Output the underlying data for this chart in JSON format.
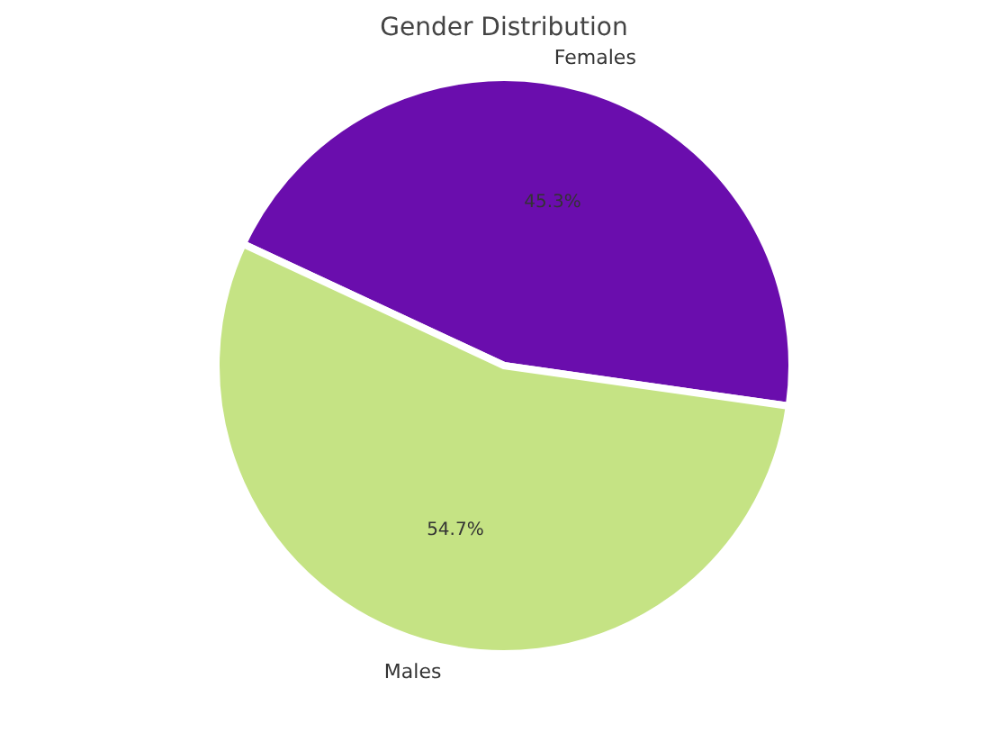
{
  "chart_data": {
    "type": "pie",
    "title": "Gender Distribution",
    "categories": [
      "Females",
      "Males"
    ],
    "values": [
      45.3,
      54.7
    ],
    "colors": [
      "#6a0dad",
      "#c5e384"
    ],
    "value_labels": [
      "45.3%",
      "54.7%"
    ],
    "legend": false
  }
}
